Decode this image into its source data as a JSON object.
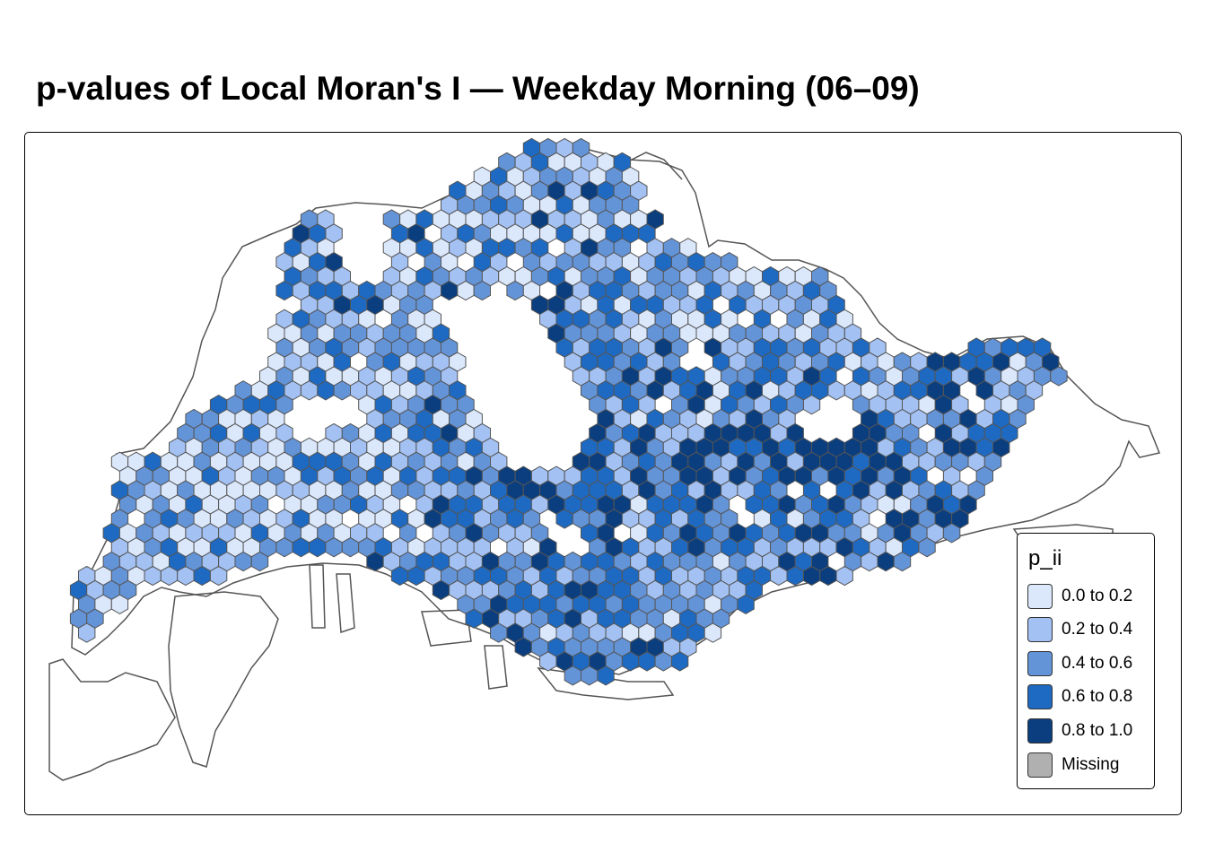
{
  "title": "p-values of Local Moran's I — Weekday Morning (06–09)",
  "legend": {
    "title": "p_ii",
    "items": [
      {
        "label": "0.0 to 0.2",
        "color": "#dbe8fc"
      },
      {
        "label": "0.2 to 0.4",
        "color": "#a3c1f2"
      },
      {
        "label": "0.4 to 0.6",
        "color": "#6494d8"
      },
      {
        "label": "0.6 to 0.8",
        "color": "#1e6ac2"
      },
      {
        "label": "0.8 to 1.0",
        "color": "#0b3e7e"
      },
      {
        "label": "Missing",
        "color": "#b0b0b0"
      }
    ]
  },
  "map": {
    "hex_outline_color": "#555555",
    "coastline_color": "#555555"
  }
}
